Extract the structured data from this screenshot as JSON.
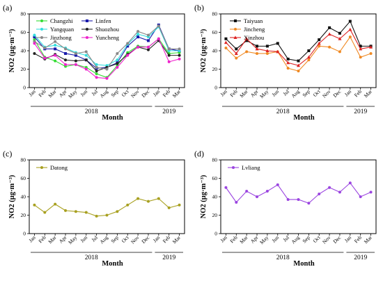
{
  "chart_data": [
    {
      "type": "line",
      "panel_label": "(a)",
      "ylabel": "NO2 (μg·m⁻³)",
      "xlabel": "Month",
      "categories": [
        "Jan",
        "Feb",
        "Mar",
        "Apr",
        "May",
        "Jun",
        "Jul",
        "Aug",
        "Sep",
        "Oct",
        "Nov",
        "Dec",
        "Jan",
        "Feb",
        "Mar"
      ],
      "years": [
        {
          "label": "2018"
        },
        {
          "label": "2019"
        }
      ],
      "ylim": [
        0,
        80
      ],
      "yticks": [
        0,
        20,
        40,
        60,
        80
      ],
      "legend_columns": 2,
      "series": [
        {
          "name": "Changzhi",
          "color": "#33dd33",
          "marker": "circle",
          "values": [
            52,
            33,
            29,
            23,
            25,
            22,
            15,
            11,
            24,
            38,
            45,
            44,
            53,
            37,
            38
          ]
        },
        {
          "name": "Linfen",
          "color": "#1a1aaa",
          "marker": "square",
          "values": [
            55,
            42,
            42,
            37,
            35,
            30,
            21,
            22,
            27,
            45,
            55,
            51,
            68,
            42,
            40
          ]
        },
        {
          "name": "Yangquan",
          "color": "#33dddd",
          "marker": "circle",
          "values": [
            57,
            44,
            46,
            43,
            38,
            35,
            25,
            24,
            30,
            47,
            58,
            55,
            66,
            40,
            40
          ]
        },
        {
          "name": "Shuozhou",
          "color": "#222222",
          "marker": "circle",
          "values": [
            37,
            31,
            36,
            30,
            29,
            30,
            18,
            22,
            26,
            36,
            44,
            41,
            51,
            35,
            35
          ]
        },
        {
          "name": "Jinzhong",
          "color": "#888888",
          "marker": "circle",
          "values": [
            50,
            43,
            50,
            42,
            37,
            39,
            22,
            20,
            37,
            48,
            61,
            57,
            67,
            42,
            42
          ]
        },
        {
          "name": "Yuncheng",
          "color": "#ee22cc",
          "marker": "circle",
          "values": [
            48,
            32,
            35,
            25,
            25,
            20,
            11,
            10,
            22,
            35,
            44,
            44,
            53,
            28,
            31
          ]
        }
      ]
    },
    {
      "type": "line",
      "panel_label": "(b)",
      "ylabel": "NO2 (μg·m⁻³)",
      "xlabel": "Month",
      "categories": [
        "Jan",
        "Feb",
        "Mar",
        "Apr",
        "May",
        "Jun",
        "Jul",
        "Aug",
        "Sep",
        "Oct",
        "Nov",
        "Dec",
        "Jan",
        "Feb",
        "Mar"
      ],
      "years": [
        {
          "label": "2018"
        },
        {
          "label": "2019"
        }
      ],
      "ylim": [
        0,
        80
      ],
      "yticks": [
        0,
        20,
        40,
        60,
        80
      ],
      "legend_columns": 1,
      "series": [
        {
          "name": "Taiyuan",
          "color": "#111111",
          "marker": "square",
          "values": [
            53,
            42,
            51,
            45,
            45,
            48,
            31,
            29,
            40,
            52,
            65,
            59,
            72,
            45,
            45
          ]
        },
        {
          "name": "Jincheng",
          "color": "#f08a24",
          "marker": "circle",
          "values": [
            43,
            32,
            39,
            37,
            37,
            39,
            21,
            18,
            30,
            45,
            44,
            39,
            55,
            33,
            37
          ]
        },
        {
          "name": "Xinzhou",
          "color": "#dd2222",
          "marker": "triangle",
          "values": [
            49,
            37,
            53,
            42,
            40,
            39,
            27,
            24,
            33,
            48,
            58,
            53,
            63,
            42,
            44
          ]
        }
      ]
    },
    {
      "type": "line",
      "panel_label": "(c)",
      "ylabel": "NO2 (μg·m⁻³)",
      "xlabel": "Month",
      "categories": [
        "Jan",
        "Feb",
        "Mar",
        "Apr",
        "May",
        "Jun",
        "Jul",
        "Aug",
        "Sep",
        "Oct",
        "Nov",
        "Dec",
        "Jan",
        "Feb",
        "Mar"
      ],
      "years": [
        {
          "label": "2018"
        },
        {
          "label": "2019"
        }
      ],
      "ylim": [
        0,
        80
      ],
      "yticks": [
        0,
        20,
        40,
        60,
        80
      ],
      "legend_columns": 1,
      "series": [
        {
          "name": "Datong",
          "color": "#a8a020",
          "marker": "circle",
          "values": [
            31,
            23,
            32,
            25,
            24,
            23,
            19,
            20,
            24,
            31,
            38,
            35,
            38,
            28,
            31
          ]
        }
      ]
    },
    {
      "type": "line",
      "panel_label": "(d)",
      "ylabel": "NO2 (μg·m⁻³)",
      "xlabel": "Month",
      "categories": [
        "Jan",
        "Feb",
        "Mar",
        "Apr",
        "May",
        "Jun",
        "Jul",
        "Aug",
        "Sep",
        "Oct",
        "Nov",
        "Dec",
        "Jan",
        "Feb",
        "Mar"
      ],
      "years": [
        {
          "label": "2018"
        },
        {
          "label": "2019"
        }
      ],
      "ylim": [
        0,
        80
      ],
      "yticks": [
        0,
        20,
        40,
        60,
        80
      ],
      "legend_columns": 1,
      "series": [
        {
          "name": "Lvliang",
          "color": "#9b45e0",
          "marker": "circle",
          "values": [
            50,
            34,
            46,
            40,
            46,
            53,
            37,
            37,
            33,
            43,
            50,
            45,
            55,
            40,
            45
          ]
        }
      ]
    }
  ]
}
